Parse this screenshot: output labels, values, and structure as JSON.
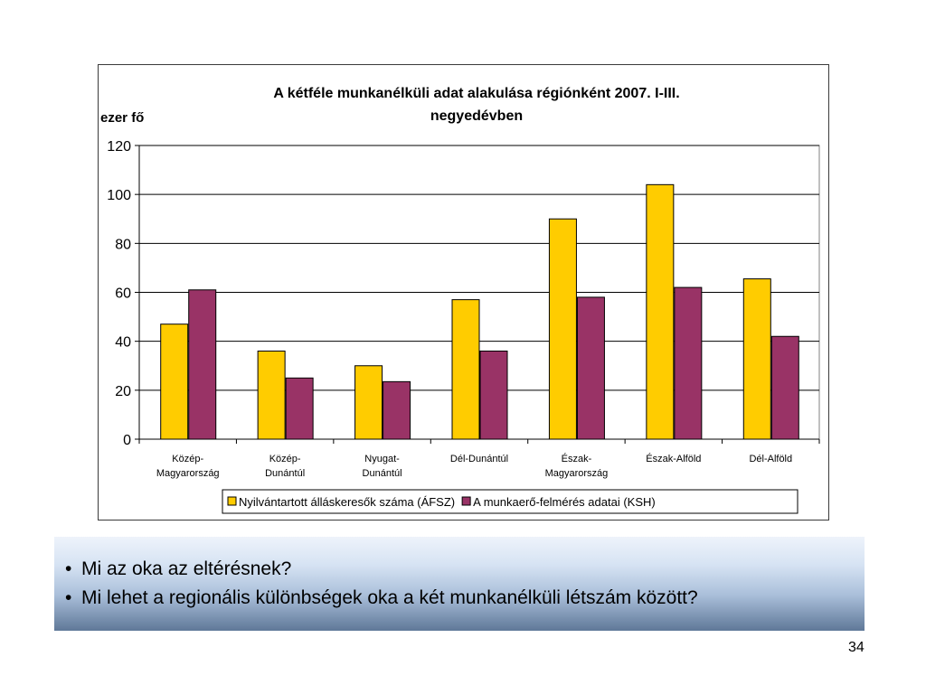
{
  "chart_data": {
    "type": "bar",
    "title_lines": [
      "A kétféle munkanélküli adat alakulása régiónként 2007. I-III.",
      "negyedévben"
    ],
    "ylabel": "ezer fő",
    "ylim": [
      0,
      120
    ],
    "yticks": [
      0,
      20,
      40,
      60,
      80,
      100,
      120
    ],
    "grid": true,
    "legend_position": "bottom",
    "categories": [
      [
        "Közép-",
        "Magyarország"
      ],
      [
        "Közép-",
        "Dunántúl"
      ],
      [
        "Nyugat-",
        "Dunántúl"
      ],
      [
        "Dél-Dunántúl"
      ],
      [
        "Észak-",
        "Magyarország"
      ],
      [
        "Észak-Alföld"
      ],
      [
        "Dél-Alföld"
      ]
    ],
    "series": [
      {
        "name": "Nyilvántartott álláskeresők száma (ÁFSZ)",
        "color": "#ffcc00",
        "values": [
          47,
          36,
          30,
          57,
          90,
          104,
          65.5
        ]
      },
      {
        "name": "A munkaerő-felmérés adatai (KSH)",
        "color": "#993366",
        "values": [
          61,
          25,
          23.5,
          36,
          58,
          62,
          42
        ]
      }
    ]
  },
  "bullets": [
    "Mi az oka az eltérésnek?",
    "Mi lehet a regionális különbségek oka a két munkanélküli létszám között?"
  ],
  "page_number": "34"
}
